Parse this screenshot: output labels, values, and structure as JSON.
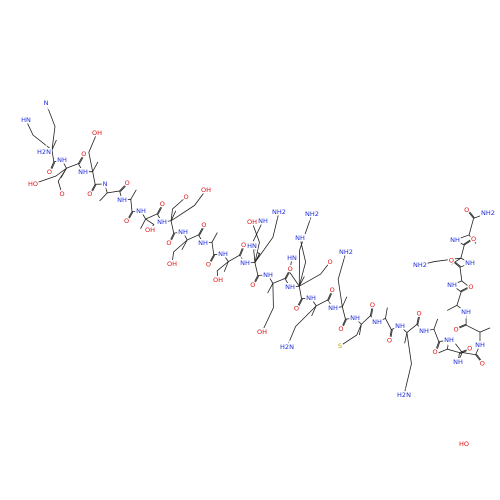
{
  "backbone": [
    {
      "n": "H2N",
      "o": "O"
    },
    {
      "n": "NH",
      "o": "O"
    },
    {
      "n": "NH",
      "o": "O"
    },
    {
      "n": "N",
      "o": "O"
    },
    {
      "n": "NH",
      "o": "O"
    },
    {
      "n": "NH",
      "o": "O"
    },
    {
      "n": "NH",
      "o": "O"
    },
    {
      "n": "NH",
      "o": "O"
    },
    {
      "n": "NH",
      "o": "O"
    },
    {
      "n": "NH",
      "o": "O"
    },
    {
      "n": "NH",
      "o": "O"
    },
    {
      "n": "NH",
      "o": "O"
    },
    {
      "n": "NH",
      "o": "O"
    },
    {
      "n": "NH",
      "o": "O"
    },
    {
      "n": "NH",
      "o": "O"
    },
    {
      "n": "NH",
      "o": "O"
    },
    {
      "n": "NH",
      "o": "O"
    },
    {
      "n": "NH",
      "o": "O"
    },
    {
      "n": "NH",
      "o": "O"
    },
    {
      "n": "NH",
      "o": "O"
    },
    {
      "n": "NH",
      "o": "O"
    },
    {
      "n": "NH",
      "o": "O"
    },
    {
      "n": "NH",
      "o": "O"
    },
    {
      "n": "NH",
      "o": "O"
    },
    {
      "n": "NH",
      "o": "O"
    },
    {
      "n": "NH",
      "o": "O"
    }
  ],
  "c_terminus": "NH2",
  "side_labels": [
    "HN",
    "N",
    "OH",
    "HO",
    "O",
    "OH",
    "O",
    "OH",
    "OH",
    "OH",
    "OH",
    "HN",
    "NH",
    "NH2",
    "HN",
    "NH",
    "NH2",
    "OH",
    "H2N",
    "O",
    "NH2",
    "S",
    "NH2",
    "H2N",
    "HO"
  ]
}
